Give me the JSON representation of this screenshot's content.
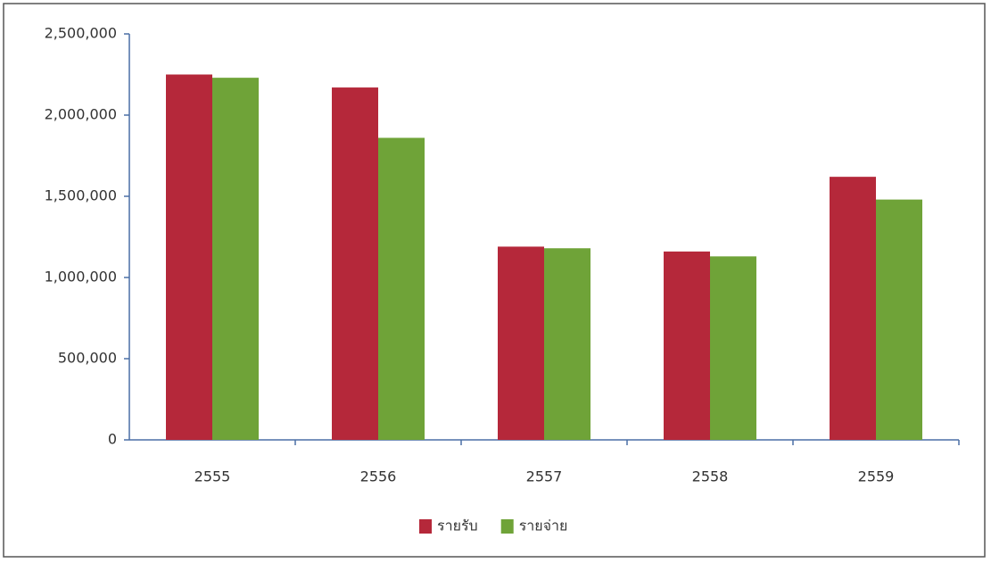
{
  "chart_data": {
    "type": "bar",
    "categories": [
      "2555",
      "2556",
      "2557",
      "2558",
      "2559"
    ],
    "series": [
      {
        "name": "รายรับ",
        "color": "#b5283a",
        "values": [
          2250000,
          2170000,
          1190000,
          1160000,
          1620000
        ]
      },
      {
        "name": "รายจ่าย",
        "color": "#6fa338",
        "values": [
          2230000,
          1860000,
          1180000,
          1130000,
          1480000
        ]
      }
    ],
    "ylim": [
      0,
      2500000
    ],
    "yticks": [
      0,
      {
        "value": 500000,
        "label": "500,000"
      },
      {
        "value": 1000000,
        "label": "1,000,000"
      },
      {
        "value": 1500000,
        "label": "1,500,000"
      },
      {
        "value": 2000000,
        "label": "2,000,000"
      },
      {
        "value": 2500000,
        "label": "2,500,000"
      }
    ],
    "legend": "bottom"
  }
}
